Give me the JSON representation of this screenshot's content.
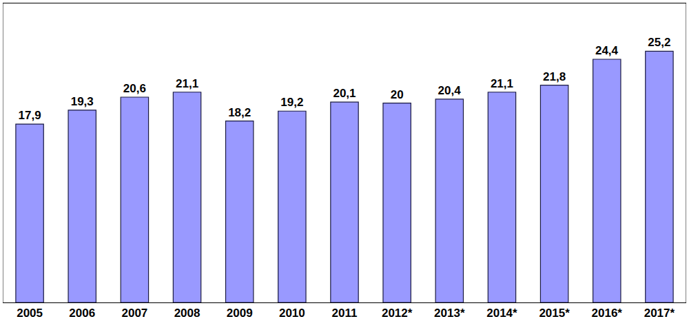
{
  "chart_data": {
    "type": "bar",
    "categories": [
      "2005",
      "2006",
      "2007",
      "2008",
      "2009",
      "2010",
      "2011",
      "2012*",
      "2013*",
      "2014*",
      "2015*",
      "2016*",
      "2017*"
    ],
    "values": [
      17.9,
      19.3,
      20.6,
      21.1,
      18.2,
      19.2,
      20.1,
      20,
      20.4,
      21.1,
      21.8,
      24.4,
      25.2
    ],
    "value_labels": [
      "17,9",
      "19,3",
      "20,6",
      "21,1",
      "18,2",
      "19,2",
      "20,1",
      "20",
      "20,4",
      "21,1",
      "21,8",
      "24,4",
      "25,2"
    ],
    "color": "#9999ff",
    "ylim": [
      0,
      30
    ],
    "yticks": [],
    "grid": false,
    "data_labels": true,
    "tick_labels": "x"
  }
}
